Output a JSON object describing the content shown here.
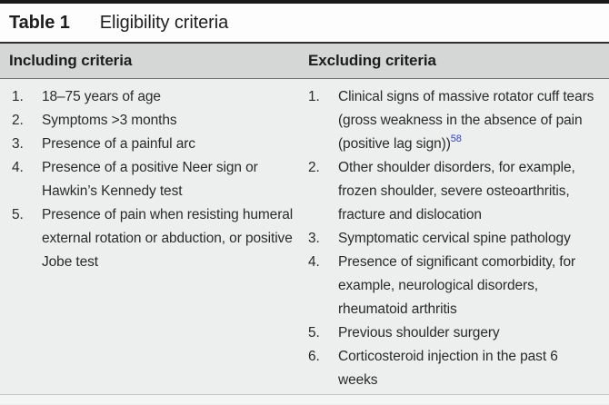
{
  "caption": {
    "label": "Table 1",
    "title": "Eligibility criteria"
  },
  "columns": [
    {
      "header": "Including criteria",
      "items": [
        {
          "text": "18–75 years of age"
        },
        {
          "text": "Symptoms >3 months"
        },
        {
          "text": "Presence of a painful arc"
        },
        {
          "text": "Presence of a positive Neer sign or Hawkin’s Kennedy test"
        },
        {
          "text": "Presence of pain when resisting humeral external rotation or abduction, or positive Jobe test"
        }
      ]
    },
    {
      "header": "Excluding criteria",
      "items": [
        {
          "text": "Clinical signs of massive rotator cuff tears (gross weakness in the absence of pain (positive lag sign))",
          "ref": "58"
        },
        {
          "text": "Other shoulder disorders, for example, frozen shoulder, severe osteoarthritis, fracture and dislocation"
        },
        {
          "text": "Symptomatic cervical spine pathology"
        },
        {
          "text": "Presence of significant comorbidity, for example, neurological disorders, rheumatoid arthritis"
        },
        {
          "text": "Previous shoulder surgery"
        },
        {
          "text": "Corticosteroid injection in the past 6 weeks"
        }
      ]
    }
  ],
  "colors": {
    "top_rule": "#1a1a1a",
    "caption_background": "#fdfdfd",
    "header_band": "#d5d7d6",
    "body_background": "#edefee",
    "text": "#2a2a2a",
    "reference_link": "#2c3bd0",
    "bottom_hairline": "#c5c9c7"
  }
}
